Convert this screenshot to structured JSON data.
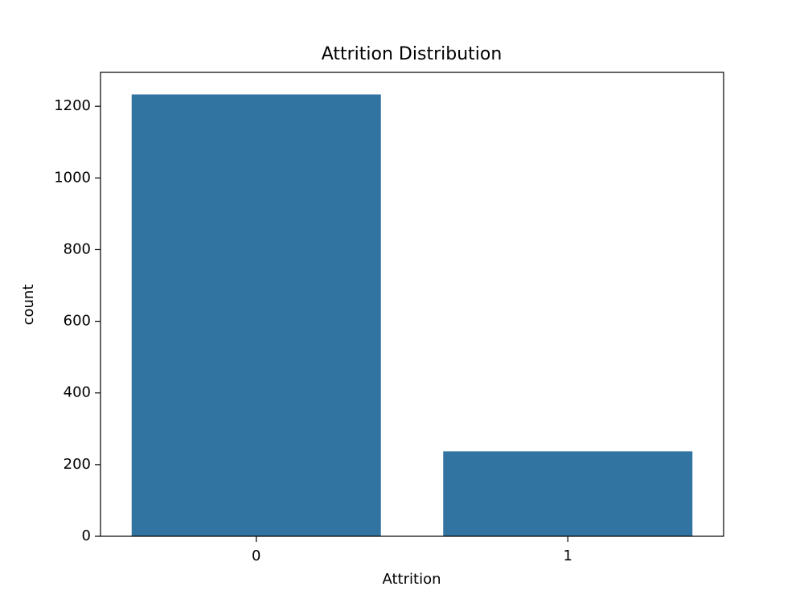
{
  "chart_data": {
    "type": "bar",
    "title": "Attrition Distribution",
    "x_label": "Attrition",
    "y_label": "count",
    "categories": [
      "0",
      "1"
    ],
    "values": [
      1233,
      237
    ],
    "color": "#3274a1",
    "ylim": [
      0,
      1294.65
    ],
    "yticks": [
      0,
      200,
      400,
      600,
      800,
      1000,
      1200
    ]
  }
}
